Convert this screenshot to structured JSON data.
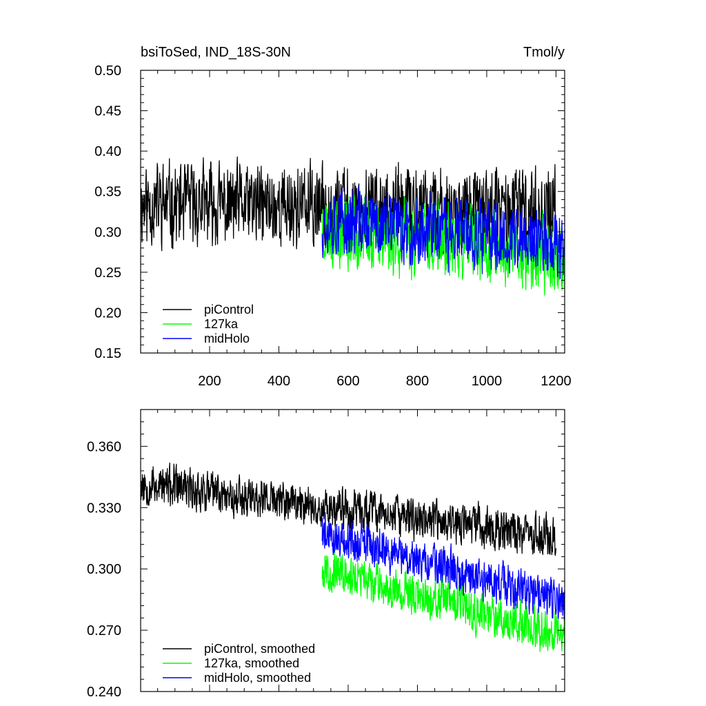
{
  "chart_data": [
    {
      "type": "line",
      "title": "bsiToSed, IND_18S-30N",
      "units": "Tmol/y",
      "xlabel": "",
      "ylabel": "",
      "xlim": [
        1,
        1225
      ],
      "ylim": [
        0.15,
        0.5
      ],
      "xticks": [
        200,
        400,
        600,
        800,
        1000,
        1200
      ],
      "xtick_labels": [
        "200",
        "400",
        "600",
        "800",
        "1000",
        "1200"
      ],
      "yticks": [
        0.15,
        0.2,
        0.25,
        0.3,
        0.35,
        0.4,
        0.45,
        0.5
      ],
      "ytick_labels": [
        "0.15",
        "0.20",
        "0.25",
        "0.30",
        "0.35",
        "0.40",
        "0.45",
        "0.50"
      ],
      "legend_position": "bottom-left",
      "series": [
        {
          "name": "piControl",
          "color": "#000000",
          "x_start": 1,
          "x_end": 1200,
          "mean_start": 0.335,
          "mean_end": 0.325,
          "amplitude": 0.045,
          "seed": 11
        },
        {
          "name": "127ka",
          "color": "#00ff00",
          "x_start": 525,
          "x_end": 1225,
          "mean_start": 0.305,
          "mean_end": 0.27,
          "amplitude": 0.042,
          "seed": 23
        },
        {
          "name": "midHolo",
          "color": "#0000ff",
          "x_start": 525,
          "x_end": 1225,
          "mean_start": 0.315,
          "mean_end": 0.285,
          "amplitude": 0.038,
          "seed": 37
        }
      ]
    },
    {
      "type": "line",
      "title": "",
      "xlabel": "",
      "ylabel": "",
      "xlim": [
        1,
        1225
      ],
      "ylim": [
        0.24,
        0.378
      ],
      "yticks": [
        0.24,
        0.27,
        0.3,
        0.33,
        0.36
      ],
      "ytick_labels": [
        "0.240",
        "0.270",
        "0.300",
        "0.330",
        "0.360"
      ],
      "legend_position": "bottom-left",
      "series": [
        {
          "name": "piControl, smoothed",
          "color": "#000000",
          "x_start": 1,
          "x_end": 1200,
          "mean_start": 0.342,
          "mean_end": 0.316,
          "amplitude": 0.009,
          "seed": 53
        },
        {
          "name": "127ka, smoothed",
          "color": "#00ff00",
          "x_start": 525,
          "x_end": 1225,
          "mean_start": 0.3,
          "mean_end": 0.268,
          "amplitude": 0.009,
          "seed": 67
        },
        {
          "name": "midHolo, smoothed",
          "color": "#0000ff",
          "x_start": 525,
          "x_end": 1225,
          "mean_start": 0.318,
          "mean_end": 0.283,
          "amplitude": 0.009,
          "seed": 79
        }
      ]
    }
  ]
}
